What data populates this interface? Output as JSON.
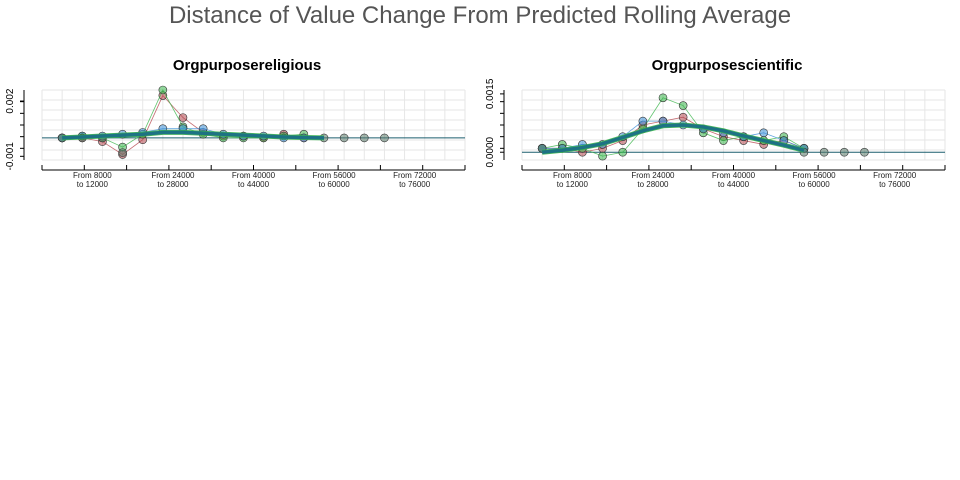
{
  "title": "Distance of Value Change From Predicted Rolling Average",
  "colors": {
    "series_red": "#b5474f",
    "series_green": "#39b54a",
    "series_blue": "#3a8fd9",
    "series_teal": "#1b6f86",
    "point_dark": "#5a7a6a",
    "grid": "#e6e6e6",
    "baseline": "#1b5e6e"
  },
  "chart_data": [
    {
      "type": "line",
      "title": "Orgpurposereligious",
      "x_categories": [
        "From 8000\nto 12000",
        "From 24000\nto 28000",
        "From 40000\nto 44000",
        "From 56000\nto 60000",
        "From 72000\nto 76000"
      ],
      "x_category_lines": [
        [
          "From 8000",
          "to 12000"
        ],
        [
          "From 24000",
          "to 28000"
        ],
        [
          "From 40000",
          "to 44000"
        ],
        [
          "From 56000",
          "to 60000"
        ],
        [
          "From 72000",
          "to 76000"
        ]
      ],
      "x_tick_values": [
        10000,
        26000,
        42000,
        58000,
        74000
      ],
      "xlim": [
        0,
        84000
      ],
      "ylim": [
        -0.0012,
        0.0026
      ],
      "y_ticks": [
        -0.001,
        0.002
      ],
      "y_tick_labels": [
        "-0.001",
        "0.002"
      ],
      "baseline": 0,
      "series": [
        {
          "color_key": "series_red",
          "x": [
            4000,
            8000,
            12000,
            16000,
            20000,
            24000,
            28000,
            32000,
            36000,
            40000,
            44000,
            48000,
            52000
          ],
          "y": [
            0.0,
            0.0,
            -0.0002,
            -0.0009,
            -0.0001,
            0.0023,
            0.0011,
            0.0003,
            0.0001,
            0.0001,
            0.0,
            0.0002,
            0.0
          ]
        },
        {
          "color_key": "series_green",
          "x": [
            4000,
            8000,
            12000,
            16000,
            20000,
            24000,
            28000,
            32000,
            36000,
            40000,
            44000,
            48000,
            52000
          ],
          "y": [
            0.0,
            0.0001,
            0.0,
            -0.0005,
            0.0002,
            0.0026,
            0.0006,
            0.0002,
            0.0,
            0.0,
            0.0,
            0.0001,
            0.0002
          ]
        },
        {
          "color_key": "series_blue",
          "x": [
            4000,
            8000,
            12000,
            16000,
            20000,
            24000,
            28000,
            32000,
            36000,
            40000,
            44000,
            48000,
            52000
          ],
          "y": [
            0.0,
            0.0001,
            0.0001,
            0.0002,
            0.0003,
            0.0005,
            0.0005,
            0.0005,
            0.0002,
            0.0001,
            0.0001,
            0.0,
            0.0
          ]
        },
        {
          "color_key": "point_dark",
          "x": [
            4000,
            8000,
            12000,
            16000,
            56000,
            60000,
            64000,
            68000
          ],
          "y": [
            0.0,
            0.0,
            0.0,
            -0.0008,
            0.0,
            0.0,
            0.0,
            0.0
          ]
        }
      ],
      "trend": {
        "x": [
          4000,
          8000,
          12000,
          16000,
          20000,
          24000,
          28000,
          32000,
          36000,
          40000,
          44000,
          48000,
          52000,
          56000
        ],
        "y": [
          0.0,
          5e-05,
          0.0001,
          0.00015,
          0.0002,
          0.0003,
          0.0003,
          0.00025,
          0.0002,
          0.00015,
          0.0001,
          5e-05,
          2e-05,
          0.0
        ]
      }
    },
    {
      "type": "line",
      "title": "Orgpurposescientific",
      "x_categories": [
        "From 8000\nto 12000",
        "From 24000\nto 28000",
        "From 40000\nto 44000",
        "From 56000\nto 60000",
        "From 72000\nto 76000"
      ],
      "x_category_lines": [
        [
          "From 8000",
          "to 12000"
        ],
        [
          "From 24000",
          "to 28000"
        ],
        [
          "From 40000",
          "to 44000"
        ],
        [
          "From 56000",
          "to 60000"
        ],
        [
          "From 72000",
          "to 76000"
        ]
      ],
      "x_tick_values": [
        10000,
        26000,
        42000,
        58000,
        74000
      ],
      "xlim": [
        0,
        84000
      ],
      "ylim": [
        -0.0002,
        0.0016
      ],
      "y_ticks": [
        0.0,
        0.0015
      ],
      "y_tick_labels": [
        "0.0000",
        "0.0015"
      ],
      "baseline": 0,
      "series": [
        {
          "color_key": "series_red",
          "x": [
            4000,
            8000,
            12000,
            16000,
            20000,
            24000,
            28000,
            32000,
            36000,
            40000,
            44000,
            48000,
            52000,
            56000
          ],
          "y": [
            0.0001,
            0.0001,
            0.0,
            0.0001,
            0.0003,
            0.0007,
            0.0008,
            0.0009,
            0.0006,
            0.0004,
            0.0003,
            0.0002,
            0.0003,
            0.0001
          ]
        },
        {
          "color_key": "series_green",
          "x": [
            4000,
            8000,
            12000,
            16000,
            20000,
            24000,
            28000,
            32000,
            36000,
            40000,
            44000,
            48000,
            52000,
            56000
          ],
          "y": [
            0.0001,
            0.0002,
            0.0001,
            -0.0001,
            0.0,
            0.0006,
            0.0014,
            0.0012,
            0.0005,
            0.0003,
            0.0004,
            0.0003,
            0.0004,
            0.0001
          ]
        },
        {
          "color_key": "series_blue",
          "x": [
            4000,
            8000,
            12000,
            16000,
            20000,
            24000,
            28000,
            32000,
            36000,
            40000,
            44000,
            48000,
            52000,
            56000
          ],
          "y": [
            0.0001,
            0.0001,
            0.0002,
            0.0002,
            0.0004,
            0.0008,
            0.0008,
            0.0007,
            0.0006,
            0.0005,
            0.0004,
            0.0005,
            0.0003,
            0.0001
          ]
        },
        {
          "color_key": "point_dark",
          "x": [
            4000,
            56000,
            60000,
            64000,
            68000
          ],
          "y": [
            0.0001,
            0.0,
            0.0,
            0.0,
            0.0
          ]
        }
      ],
      "trend": {
        "x": [
          4000,
          8000,
          12000,
          16000,
          20000,
          24000,
          28000,
          32000,
          36000,
          40000,
          44000,
          48000,
          52000,
          56000
        ],
        "y": [
          0.0,
          5e-05,
          0.00012,
          0.00022,
          0.00038,
          0.00055,
          0.00068,
          0.0007,
          0.00065,
          0.00055,
          0.00042,
          0.0003,
          0.00018,
          5e-05
        ]
      }
    }
  ]
}
